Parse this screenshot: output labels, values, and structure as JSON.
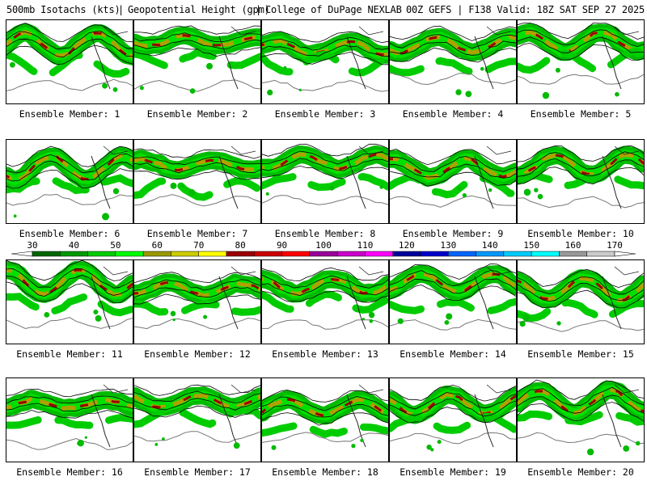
{
  "header": {
    "product": "500mb Isotachs (kts)",
    "field": "Geopotential Height (gpm)",
    "source": "College of DuPage NEXLAB",
    "run_info": "00Z GEFS | F138 Valid: 18Z SAT SEP 27 2025"
  },
  "colorbar": {
    "labels": [
      "30",
      "40",
      "50",
      "60",
      "70",
      "80",
      "90",
      "100",
      "110",
      "120",
      "130",
      "140",
      "150",
      "160",
      "170"
    ],
    "colors": [
      "#006600",
      "#009900",
      "#00cc00",
      "#00ff00",
      "#999900",
      "#cccc00",
      "#ffff00",
      "#990000",
      "#cc0000",
      "#ff0000",
      "#990099",
      "#cc00cc",
      "#ff00ff",
      "#000099",
      "#0000cc",
      "#0066ff",
      "#0099ff",
      "#00ccff",
      "#00ffff",
      "#999999",
      "#cccccc"
    ]
  },
  "members": [
    {
      "label": "Ensemble Member: 1"
    },
    {
      "label": "Ensemble Member: 2"
    },
    {
      "label": "Ensemble Member: 3"
    },
    {
      "label": "Ensemble Member: 4"
    },
    {
      "label": "Ensemble Member: 5"
    },
    {
      "label": "Ensemble Member: 6"
    },
    {
      "label": "Ensemble Member: 7"
    },
    {
      "label": "Ensemble Member: 8"
    },
    {
      "label": "Ensemble Member: 9"
    },
    {
      "label": "Ensemble Member: 10"
    },
    {
      "label": "Ensemble Member: 11"
    },
    {
      "label": "Ensemble Member: 12"
    },
    {
      "label": "Ensemble Member: 13"
    },
    {
      "label": "Ensemble Member: 14"
    },
    {
      "label": "Ensemble Member: 15"
    },
    {
      "label": "Ensemble Member: 16"
    },
    {
      "label": "Ensemble Member: 17"
    },
    {
      "label": "Ensemble Member: 18"
    },
    {
      "label": "Ensemble Member: 19"
    },
    {
      "label": "Ensemble Member: 20"
    }
  ]
}
